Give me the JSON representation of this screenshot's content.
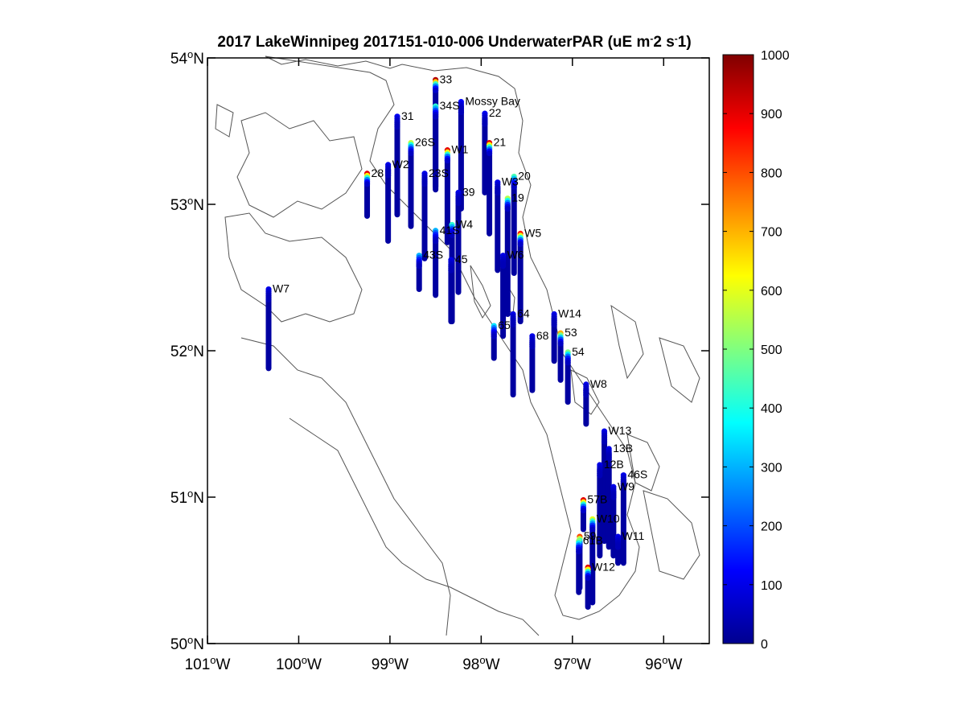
{
  "figure": {
    "title": "2017 LakeWinnipeg 2017151-010-006 UnderwaterPAR (uE m",
    "title_tail": "2 s",
    "title_tail2": "1)"
  },
  "map": {
    "lon_range": [
      -101,
      -95.5
    ],
    "lat_range": [
      50,
      54
    ],
    "lat_ticks": [
      {
        "value": 54,
        "deg": "54",
        "hem": "N"
      },
      {
        "value": 53,
        "deg": "53",
        "hem": "N"
      },
      {
        "value": 52,
        "deg": "52",
        "hem": "N"
      },
      {
        "value": 51,
        "deg": "51",
        "hem": "N"
      },
      {
        "value": 50,
        "deg": "50",
        "hem": "N"
      }
    ],
    "lon_ticks": [
      {
        "value": -101,
        "deg": "101",
        "hem": "W"
      },
      {
        "value": -100,
        "deg": "100",
        "hem": "W"
      },
      {
        "value": -99,
        "deg": "99",
        "hem": "W"
      },
      {
        "value": -98,
        "deg": "98",
        "hem": "W"
      },
      {
        "value": -97,
        "deg": "97",
        "hem": "W"
      },
      {
        "value": -96,
        "deg": "96",
        "hem": "W"
      }
    ]
  },
  "colorbar": {
    "min": 0,
    "max": 1000,
    "colormap": "jet",
    "ticks": [
      "0",
      "100",
      "200",
      "300",
      "400",
      "500",
      "600",
      "700",
      "800",
      "900",
      "1000"
    ]
  },
  "chart_data": {
    "type": "scatter",
    "title": "2017 LakeWinnipeg 2017151-010-006 UnderwaterPAR (uE m-2 s-1)",
    "x_unit": "longitude (deg)",
    "y_unit": "latitude (deg)",
    "xlim": [
      -101,
      -95.5
    ],
    "ylim": [
      50,
      54
    ],
    "color_scale": [
      0,
      1000
    ],
    "stations": [
      {
        "name": "33",
        "lon": -98.5,
        "lat": 53.84,
        "top": 53.85,
        "bottom": 53.12,
        "surface_par": 950
      },
      {
        "name": "34S",
        "lon": -98.5,
        "lat": 53.66,
        "top": 53.67,
        "bottom": 53.1,
        "surface_par": 420
      },
      {
        "name": "Mossy Bay",
        "lon": -98.22,
        "lat": 53.7,
        "top": 53.7,
        "bottom": 52.97,
        "surface_par": 120
      },
      {
        "name": "22",
        "lon": -97.96,
        "lat": 53.62,
        "top": 53.62,
        "bottom": 53.08,
        "surface_par": 110
      },
      {
        "name": "31",
        "lon": -98.92,
        "lat": 53.6,
        "top": 53.6,
        "bottom": 52.93,
        "surface_par": 110
      },
      {
        "name": "26S",
        "lon": -98.77,
        "lat": 53.42,
        "top": 53.42,
        "bottom": 52.85,
        "surface_par": 560
      },
      {
        "name": "21",
        "lon": -97.91,
        "lat": 53.42,
        "top": 53.42,
        "bottom": 52.8,
        "surface_par": 900
      },
      {
        "name": "W1",
        "lon": -98.37,
        "lat": 53.37,
        "top": 53.37,
        "bottom": 52.74,
        "surface_par": 900
      },
      {
        "name": "W2",
        "lon": -99.02,
        "lat": 53.27,
        "top": 53.27,
        "bottom": 52.75,
        "surface_par": 100
      },
      {
        "name": "28",
        "lon": -99.25,
        "lat": 53.21,
        "top": 53.21,
        "bottom": 52.92,
        "surface_par": 900
      },
      {
        "name": "23S",
        "lon": -98.62,
        "lat": 53.21,
        "top": 53.21,
        "bottom": 52.63,
        "surface_par": 100
      },
      {
        "name": "W3",
        "lon": -97.82,
        "lat": 53.15,
        "top": 53.15,
        "bottom": 52.55,
        "surface_par": 100
      },
      {
        "name": "20",
        "lon": -97.64,
        "lat": 53.19,
        "top": 53.19,
        "bottom": 52.53,
        "surface_par": 450
      },
      {
        "name": "39",
        "lon": -98.25,
        "lat": 53.08,
        "top": 53.08,
        "bottom": 52.4,
        "surface_par": 100
      },
      {
        "name": "19",
        "lon": -97.71,
        "lat": 53.04,
        "top": 53.04,
        "bottom": 52.25,
        "surface_par": 550
      },
      {
        "name": "W4",
        "lon": -98.32,
        "lat": 52.86,
        "top": 52.86,
        "bottom": 52.2,
        "surface_par": 420
      },
      {
        "name": "41S",
        "lon": -98.5,
        "lat": 52.82,
        "top": 52.82,
        "bottom": 52.38,
        "surface_par": 300
      },
      {
        "name": "W5",
        "lon": -97.57,
        "lat": 52.8,
        "top": 52.8,
        "bottom": 52.2,
        "surface_par": 850
      },
      {
        "name": "W6",
        "lon": -97.76,
        "lat": 52.65,
        "top": 52.65,
        "bottom": 52.1,
        "surface_par": 100
      },
      {
        "name": "43S",
        "lon": -98.68,
        "lat": 52.65,
        "top": 52.65,
        "bottom": 52.42,
        "surface_par": 300
      },
      {
        "name": "45",
        "lon": -98.33,
        "lat": 52.62,
        "top": 52.62,
        "bottom": 52.2,
        "surface_par": 100
      },
      {
        "name": "W7",
        "lon": -100.33,
        "lat": 52.42,
        "top": 52.42,
        "bottom": 51.88,
        "surface_par": 100
      },
      {
        "name": "64",
        "lon": -97.65,
        "lat": 52.25,
        "top": 52.25,
        "bottom": 51.7,
        "surface_par": 100
      },
      {
        "name": "W14",
        "lon": -97.2,
        "lat": 52.25,
        "top": 52.25,
        "bottom": 51.93,
        "surface_par": 100
      },
      {
        "name": "65",
        "lon": -97.86,
        "lat": 52.17,
        "top": 52.17,
        "bottom": 51.95,
        "surface_par": 350
      },
      {
        "name": "68",
        "lon": -97.44,
        "lat": 52.1,
        "top": 52.1,
        "bottom": 51.73,
        "surface_par": 100
      },
      {
        "name": "53",
        "lon": -97.13,
        "lat": 52.12,
        "top": 52.12,
        "bottom": 51.8,
        "surface_par": 700
      },
      {
        "name": "54",
        "lon": -97.05,
        "lat": 51.99,
        "top": 51.99,
        "bottom": 51.65,
        "surface_par": 500
      },
      {
        "name": "W8",
        "lon": -96.85,
        "lat": 51.77,
        "top": 51.77,
        "bottom": 51.5,
        "surface_par": 100
      },
      {
        "name": "W13",
        "lon": -96.65,
        "lat": 51.45,
        "top": 51.45,
        "bottom": 50.7,
        "surface_par": 100
      },
      {
        "name": "13B",
        "lon": -96.6,
        "lat": 51.33,
        "top": 51.33,
        "bottom": 50.66,
        "surface_par": 100
      },
      {
        "name": "46S",
        "lon": -96.44,
        "lat": 51.15,
        "top": 51.15,
        "bottom": 50.55,
        "surface_par": 100
      },
      {
        "name": "12B",
        "lon": -96.7,
        "lat": 51.22,
        "top": 51.22,
        "bottom": 50.6,
        "surface_par": 100
      },
      {
        "name": "W9",
        "lon": -96.55,
        "lat": 51.07,
        "top": 51.07,
        "bottom": 50.6,
        "surface_par": 100
      },
      {
        "name": "57B",
        "lon": -96.88,
        "lat": 50.98,
        "top": 50.98,
        "bottom": 50.78,
        "surface_par": 900
      },
      {
        "name": "W10",
        "lon": -96.78,
        "lat": 50.85,
        "top": 50.85,
        "bottom": 50.28,
        "surface_par": 600
      },
      {
        "name": "W11",
        "lon": -96.5,
        "lat": 50.73,
        "top": 50.73,
        "bottom": 50.55,
        "surface_par": 100
      },
      {
        "name": "59",
        "lon": -96.92,
        "lat": 50.73,
        "top": 50.73,
        "bottom": 50.38,
        "surface_par": 800
      },
      {
        "name": "61B",
        "lon": -96.93,
        "lat": 50.7,
        "top": 50.7,
        "bottom": 50.35,
        "surface_par": 500
      },
      {
        "name": "W12",
        "lon": -96.83,
        "lat": 50.52,
        "top": 50.52,
        "bottom": 50.25,
        "surface_par": 900
      }
    ]
  }
}
